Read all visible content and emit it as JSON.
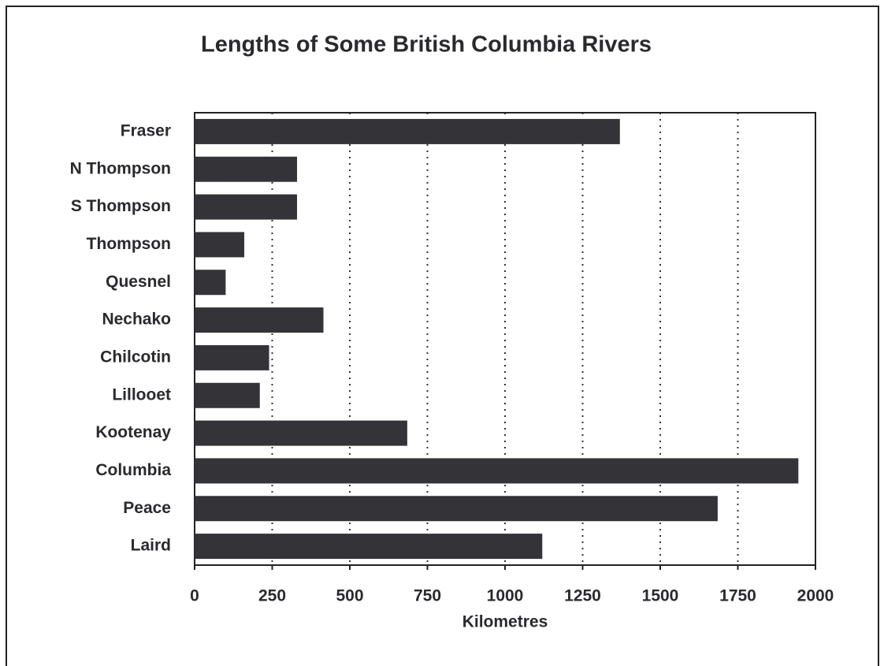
{
  "chart_data": {
    "type": "bar",
    "orientation": "horizontal",
    "title": "Lengths of Some British Columbia Rivers",
    "x_label": "Kilometres",
    "categories": [
      "Fraser",
      "N Thompson",
      "S Thompson",
      "Thompson",
      "Quesnel",
      "Nechako",
      "Chilcotin",
      "Lillooet",
      "Kootenay",
      "Columbia",
      "Peace",
      "Laird"
    ],
    "values": [
      1370,
      330,
      330,
      160,
      100,
      415,
      240,
      210,
      685,
      1945,
      1685,
      1120
    ],
    "color": "#333338",
    "xlim": [
      0,
      2000
    ],
    "xticks": [
      0,
      250,
      500,
      750,
      1000,
      1250,
      1500,
      1750,
      2000
    ],
    "grid": true
  }
}
